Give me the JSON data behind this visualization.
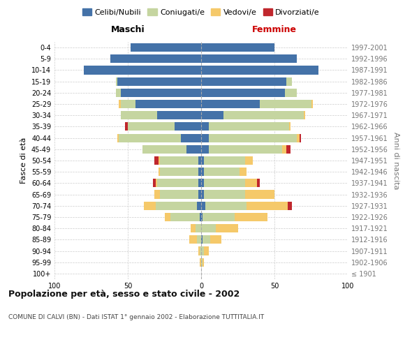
{
  "age_groups": [
    "100+",
    "95-99",
    "90-94",
    "85-89",
    "80-84",
    "75-79",
    "70-74",
    "65-69",
    "60-64",
    "55-59",
    "50-54",
    "45-49",
    "40-44",
    "35-39",
    "30-34",
    "25-29",
    "20-24",
    "15-19",
    "10-14",
    "5-9",
    "0-4"
  ],
  "birth_years": [
    "≤ 1901",
    "1902-1906",
    "1907-1911",
    "1912-1916",
    "1917-1921",
    "1922-1926",
    "1927-1931",
    "1932-1936",
    "1937-1941",
    "1942-1946",
    "1947-1951",
    "1952-1956",
    "1957-1961",
    "1962-1966",
    "1967-1971",
    "1972-1976",
    "1977-1981",
    "1982-1986",
    "1987-1991",
    "1992-1996",
    "1997-2001"
  ],
  "colors": {
    "celibe": "#4472A8",
    "coniugato": "#C5D5A0",
    "vedovo": "#F5C96A",
    "divorziato": "#C0272D"
  },
  "males": {
    "celibe": [
      0,
      0,
      0,
      0,
      0,
      1,
      3,
      2,
      2,
      2,
      2,
      10,
      14,
      18,
      30,
      45,
      55,
      57,
      80,
      62,
      48
    ],
    "coniugato": [
      0,
      0,
      1,
      3,
      4,
      20,
      28,
      26,
      28,
      26,
      26,
      30,
      42,
      32,
      25,
      10,
      3,
      1,
      0,
      0,
      0
    ],
    "vedovo": [
      0,
      1,
      1,
      5,
      3,
      4,
      8,
      4,
      1,
      1,
      1,
      0,
      1,
      0,
      0,
      1,
      0,
      0,
      0,
      0,
      0
    ],
    "divorziato": [
      0,
      0,
      0,
      0,
      0,
      0,
      0,
      0,
      2,
      0,
      3,
      0,
      0,
      2,
      0,
      0,
      0,
      0,
      0,
      0,
      0
    ]
  },
  "females": {
    "nubile": [
      0,
      0,
      0,
      1,
      0,
      1,
      3,
      2,
      2,
      2,
      2,
      5,
      5,
      5,
      15,
      40,
      57,
      58,
      80,
      65,
      50
    ],
    "coniugata": [
      0,
      1,
      2,
      5,
      10,
      22,
      28,
      28,
      28,
      24,
      28,
      50,
      60,
      55,
      55,
      35,
      8,
      4,
      0,
      0,
      0
    ],
    "vedova": [
      0,
      1,
      3,
      8,
      15,
      22,
      28,
      20,
      8,
      5,
      5,
      3,
      2,
      1,
      1,
      1,
      0,
      0,
      0,
      0,
      0
    ],
    "divorziata": [
      0,
      0,
      0,
      0,
      0,
      0,
      3,
      0,
      2,
      0,
      0,
      3,
      1,
      0,
      0,
      0,
      0,
      0,
      0,
      0,
      0
    ]
  },
  "title": "Popolazione per età, sesso e stato civile - 2002",
  "subtitle": "COMUNE DI CALVI (BN) - Dati ISTAT 1° gennaio 2002 - Elaborazione TUTTITALIA.IT",
  "xlabel_left": "Maschi",
  "xlabel_right": "Femmine",
  "ylabel_left": "Fasce di età",
  "ylabel_right": "Anni di nascita",
  "xlim": 100,
  "legend_labels": [
    "Celibi/Nubili",
    "Coniugati/e",
    "Vedovi/e",
    "Divorziati/e"
  ]
}
